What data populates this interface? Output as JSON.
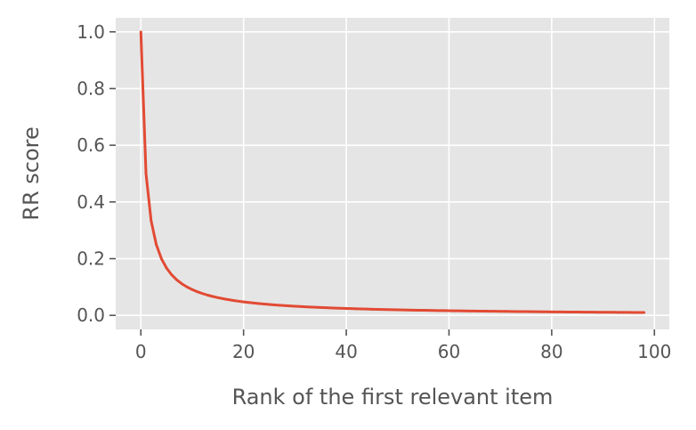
{
  "chart_data": {
    "type": "line",
    "title": "",
    "xlabel": "Rank of the first relevant item",
    "ylabel": "RR score",
    "xlim": [
      -4.9,
      102.9
    ],
    "ylim": [
      -0.0495,
      1.0495
    ],
    "xticks": [
      0,
      20,
      40,
      60,
      80,
      100
    ],
    "xtick_labels": [
      "0",
      "20",
      "40",
      "60",
      "80",
      "100"
    ],
    "yticks": [
      0.0,
      0.2,
      0.4,
      0.6,
      0.8,
      1.0
    ],
    "ytick_labels": [
      "0.0",
      "0.2",
      "0.4",
      "0.6",
      "0.8",
      "1.0"
    ],
    "grid": true,
    "style": {
      "background": "#e5e5e5",
      "grid_color": "#ffffff",
      "line_color": "#e24a33",
      "text_color": "#555555"
    },
    "series": [
      {
        "x": [
          0,
          1,
          2,
          3,
          4,
          5,
          6,
          7,
          8,
          9,
          10,
          11,
          12,
          13,
          14,
          15,
          16,
          17,
          18,
          19,
          20,
          21,
          22,
          23,
          24,
          25,
          26,
          27,
          28,
          29,
          30,
          31,
          32,
          33,
          34,
          35,
          36,
          37,
          38,
          39,
          40,
          41,
          42,
          43,
          44,
          45,
          46,
          47,
          48,
          49,
          50,
          51,
          52,
          53,
          54,
          55,
          56,
          57,
          58,
          59,
          60,
          61,
          62,
          63,
          64,
          65,
          66,
          67,
          68,
          69,
          70,
          71,
          72,
          73,
          74,
          75,
          76,
          77,
          78,
          79,
          80,
          81,
          82,
          83,
          84,
          85,
          86,
          87,
          88,
          89,
          90,
          91,
          92,
          93,
          94,
          95,
          96,
          97,
          98
        ],
        "y": [
          1.0,
          0.5,
          0.3333,
          0.25,
          0.2,
          0.1667,
          0.1429,
          0.125,
          0.1111,
          0.1,
          0.0909,
          0.0833,
          0.0769,
          0.0714,
          0.0667,
          0.0625,
          0.0588,
          0.0556,
          0.0526,
          0.05,
          0.0476,
          0.0455,
          0.0435,
          0.0417,
          0.04,
          0.0385,
          0.037,
          0.0357,
          0.0345,
          0.0333,
          0.0323,
          0.0313,
          0.0303,
          0.0294,
          0.0286,
          0.0278,
          0.027,
          0.0263,
          0.0256,
          0.025,
          0.0244,
          0.0238,
          0.0233,
          0.0227,
          0.0222,
          0.0217,
          0.0213,
          0.0208,
          0.0204,
          0.02,
          0.0196,
          0.0192,
          0.0189,
          0.0185,
          0.0182,
          0.0179,
          0.0175,
          0.0172,
          0.0169,
          0.0167,
          0.0164,
          0.0161,
          0.0159,
          0.0156,
          0.0154,
          0.0152,
          0.0149,
          0.0147,
          0.0145,
          0.0143,
          0.0141,
          0.0139,
          0.0137,
          0.0135,
          0.0133,
          0.0132,
          0.013,
          0.0128,
          0.0127,
          0.0125,
          0.0123,
          0.0122,
          0.012,
          0.0119,
          0.0118,
          0.0116,
          0.0115,
          0.0114,
          0.0112,
          0.0111,
          0.011,
          0.0109,
          0.0108,
          0.0106,
          0.0105,
          0.0104,
          0.0103,
          0.0102,
          0.0101
        ]
      }
    ]
  }
}
